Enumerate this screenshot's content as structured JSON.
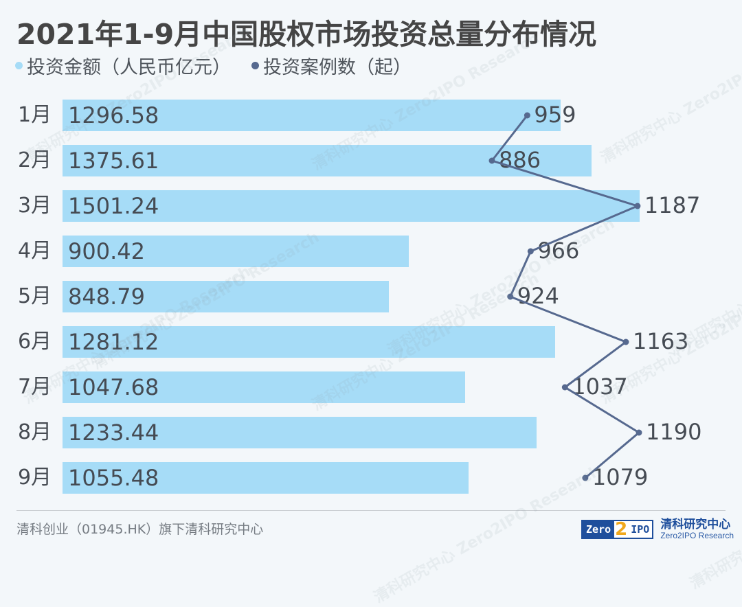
{
  "title": "2021年1-9月中国股权市场投资总量分布情况",
  "legend": [
    {
      "label": "投资金额（人民币亿元）",
      "color": "#a6dcf7"
    },
    {
      "label": "投资案例数（起）",
      "color": "#56698f"
    }
  ],
  "chart_data": {
    "type": "bar+line",
    "title": "2021年1-9月中国股权市场投资总量分布情况",
    "orientation": "horizontal",
    "categories": [
      "1月",
      "2月",
      "3月",
      "4月",
      "5月",
      "6月",
      "7月",
      "8月",
      "9月"
    ],
    "series": [
      {
        "name": "投资金额（人民币亿元）",
        "type": "bar",
        "color": "#a6dcf7",
        "values": [
          1296.58,
          1375.61,
          1501.24,
          900.42,
          848.79,
          1281.12,
          1047.68,
          1233.44,
          1055.48
        ]
      },
      {
        "name": "投资案例数（起）",
        "type": "line",
        "color": "#56698f",
        "values": [
          959,
          886,
          1187,
          966,
          924,
          1163,
          1037,
          1190,
          1079
        ]
      }
    ],
    "bar_labels": [
      "1296.58",
      "1375.61",
      "1501.24",
      "900.42",
      "848.79",
      "1281.12",
      "1047.68",
      "1233.44",
      "1055.48"
    ],
    "line_labels": [
      "959",
      "886",
      "1187",
      "966",
      "924",
      "1163",
      "1037",
      "1190",
      "1079"
    ],
    "xlabel": "",
    "ylabel": "",
    "grid": false,
    "legend_position": "top-left"
  },
  "footer": {
    "source": "清科创业（01945.HK）旗下清科研究中心",
    "logo_zero": "Zero",
    "logo_two": "2",
    "logo_ipo": "IPO",
    "logo_cn": "清科研究中心",
    "logo_en": "Zero2IPO Research"
  },
  "watermark": {
    "cn": "清科研究中心",
    "en": "Zero2IPO Research"
  }
}
